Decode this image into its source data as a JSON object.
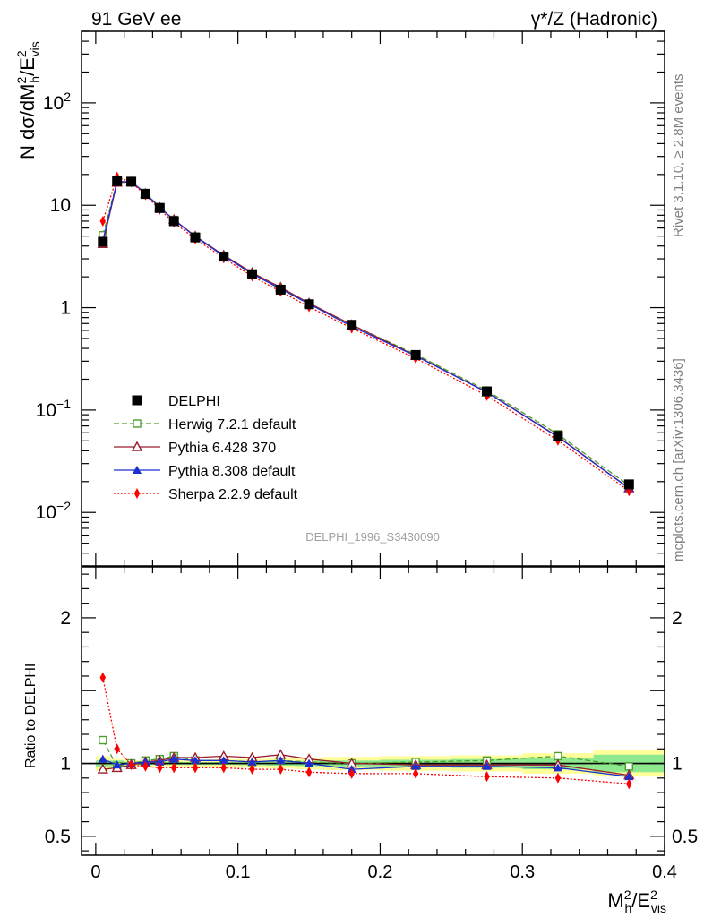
{
  "header": {
    "left": "91 GeV ee",
    "right": "γ*/Z (Hadronic)"
  },
  "side_text": {
    "top": "Rivet 3.1.10, ≥ 2.8M events",
    "bottom": "mcplots.cern.ch [arXiv:1306.3436]"
  },
  "watermark": "DELPHI_1996_S3430090",
  "chart_data": [
    {
      "type": "scatter",
      "panel": "main",
      "ylabel": "N dσ/dM_h^2/E_vis^2",
      "yscale": "log",
      "ylim": [
        0.003,
        500
      ],
      "xlim": [
        -0.01,
        0.4
      ],
      "y_ticks": [
        {
          "value": 100,
          "label": "10^2"
        },
        {
          "value": 10,
          "label": "10"
        },
        {
          "value": 1,
          "label": "1"
        },
        {
          "value": 0.1,
          "label": "10^-1"
        },
        {
          "value": 0.01,
          "label": "10^-2"
        }
      ],
      "legend_position": "lower-left",
      "x": [
        0.005,
        0.015,
        0.025,
        0.035,
        0.045,
        0.055,
        0.07,
        0.09,
        0.11,
        0.13,
        0.15,
        0.18,
        0.225,
        0.275,
        0.325,
        0.375
      ],
      "series": [
        {
          "name": "DELPHI",
          "color": "#000000",
          "marker": "square-filled",
          "line": "none",
          "values": [
            4.4,
            17.2,
            17.0,
            12.9,
            9.4,
            7.0,
            4.85,
            3.15,
            2.12,
            1.5,
            1.08,
            0.68,
            0.345,
            0.152,
            0.056,
            0.0188
          ]
        },
        {
          "name": "Herwig 7.2.1 default",
          "color": "#4d9f2d",
          "marker": "square-open",
          "line": "dashed",
          "values": [
            5.1,
            17.0,
            16.8,
            13.2,
            9.6,
            7.2,
            4.95,
            3.2,
            2.15,
            1.52,
            1.09,
            0.68,
            0.35,
            0.155,
            0.058,
            0.0183
          ]
        },
        {
          "name": "Pythia 6.428 370",
          "color": "#9b1c2c",
          "marker": "triangle-open",
          "line": "solid",
          "values": [
            4.2,
            16.7,
            16.9,
            13.0,
            9.5,
            7.25,
            5.0,
            3.25,
            2.2,
            1.58,
            1.11,
            0.68,
            0.34,
            0.15,
            0.055,
            0.0173
          ]
        },
        {
          "name": "Pythia 8.308 default",
          "color": "#1c2fd0",
          "marker": "triangle-filled",
          "line": "solid",
          "values": [
            4.5,
            17.0,
            17.0,
            13.1,
            9.5,
            7.2,
            4.95,
            3.2,
            2.15,
            1.53,
            1.09,
            0.655,
            0.338,
            0.149,
            0.0545,
            0.0172
          ]
        },
        {
          "name": "Sherpa 2.2.9 default",
          "color": "#ff0000",
          "marker": "diamond-filled",
          "line": "dotted",
          "values": [
            7.0,
            18.9,
            16.8,
            12.6,
            9.1,
            6.8,
            4.7,
            3.05,
            2.03,
            1.44,
            1.02,
            0.63,
            0.32,
            0.138,
            0.0505,
            0.0162
          ]
        }
      ]
    },
    {
      "type": "scatter",
      "panel": "ratio",
      "xlabel": "M_h^2/E_vis^2",
      "ylabel": "Ratio to DELPHI",
      "ylim": [
        0.37,
        2.35
      ],
      "xlim": [
        -0.01,
        0.4
      ],
      "y_ticks": [
        {
          "value": 2,
          "label": "2"
        },
        {
          "value": 1,
          "label": "1"
        },
        {
          "value": 0.5,
          "label": "0.5"
        }
      ],
      "x_ticks": [
        {
          "value": 0,
          "label": "0"
        },
        {
          "value": 0.1,
          "label": "0.1"
        },
        {
          "value": 0.2,
          "label": "0.2"
        },
        {
          "value": 0.3,
          "label": "0.3"
        },
        {
          "value": 0.4,
          "label": "0.4"
        }
      ],
      "bin_edges": [
        0,
        0.01,
        0.02,
        0.03,
        0.04,
        0.05,
        0.06,
        0.08,
        0.1,
        0.12,
        0.14,
        0.16,
        0.2,
        0.25,
        0.3,
        0.35,
        0.4
      ],
      "band_stat": [
        0.02,
        0.02,
        0.01,
        0.01,
        0.01,
        0.01,
        0.01,
        0.01,
        0.012,
        0.015,
        0.018,
        0.02,
        0.025,
        0.03,
        0.04,
        0.06
      ],
      "band_total": [
        0.05,
        0.03,
        0.02,
        0.02,
        0.02,
        0.02,
        0.025,
        0.028,
        0.03,
        0.035,
        0.04,
        0.045,
        0.05,
        0.055,
        0.07,
        0.09
      ],
      "x": [
        0.005,
        0.015,
        0.025,
        0.035,
        0.045,
        0.055,
        0.07,
        0.09,
        0.11,
        0.13,
        0.15,
        0.18,
        0.225,
        0.275,
        0.325,
        0.375
      ],
      "series": [
        {
          "name": "Herwig 7.2.1 default",
          "color": "#4d9f2d",
          "marker": "square-open",
          "line": "dashed",
          "values": [
            1.16,
            0.98,
            1.0,
            1.02,
            1.03,
            1.05,
            1.02,
            1.02,
            1.01,
            1.02,
            1.01,
            1.0,
            1.01,
            1.02,
            1.05,
            0.98
          ]
        },
        {
          "name": "Pythia 6.428 370",
          "color": "#9b1c2c",
          "marker": "triangle-open",
          "line": "solid",
          "values": [
            0.96,
            0.97,
            0.99,
            1.01,
            1.02,
            1.04,
            1.04,
            1.05,
            1.04,
            1.06,
            1.03,
            1.0,
            0.99,
            0.99,
            0.99,
            0.92
          ]
        },
        {
          "name": "Pythia 8.308 default",
          "color": "#1c2fd0",
          "marker": "triangle-filled",
          "line": "solid",
          "values": [
            1.03,
            0.99,
            1.0,
            1.01,
            1.01,
            1.03,
            1.02,
            1.02,
            1.01,
            1.02,
            1.0,
            0.96,
            0.98,
            0.98,
            0.97,
            0.91
          ]
        },
        {
          "name": "Sherpa 2.2.9 default",
          "color": "#ff0000",
          "marker": "diamond-filled",
          "line": "dotted",
          "values": [
            1.59,
            1.1,
            0.99,
            0.98,
            0.97,
            0.97,
            0.97,
            0.97,
            0.96,
            0.96,
            0.94,
            0.93,
            0.93,
            0.91,
            0.9,
            0.86
          ]
        }
      ]
    }
  ]
}
